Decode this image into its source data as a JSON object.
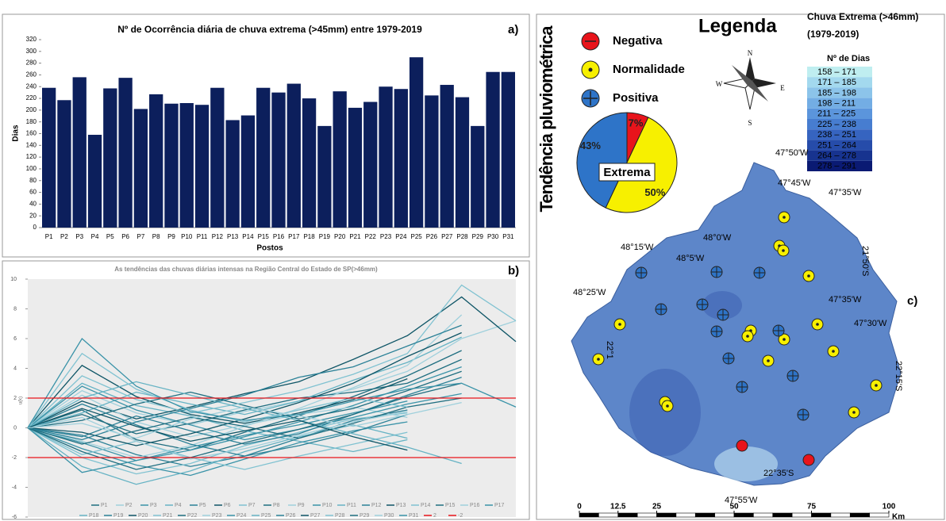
{
  "chart_data": [
    {
      "type": "bar",
      "panel_label": "a)",
      "title": "Nº de Ocorrência diária de chuva extrema (>45mm) entre 1979-2019",
      "xlabel": "Postos",
      "ylabel": "Dias",
      "color": "#0c1f5c",
      "categories": [
        "P1",
        "P2",
        "P3",
        "P4",
        "P5",
        "P6",
        "P7",
        "P8",
        "P9",
        "P10",
        "P11",
        "P12",
        "P13",
        "P14",
        "P15",
        "P16",
        "P17",
        "P18",
        "P19",
        "P20",
        "P21",
        "P22",
        "P23",
        "P24",
        "P25",
        "P26",
        "P27",
        "P28",
        "P29",
        "P30",
        "P31"
      ],
      "values": [
        238,
        217,
        256,
        158,
        237,
        255,
        202,
        227,
        211,
        212,
        209,
        238,
        183,
        191,
        238,
        230,
        245,
        220,
        173,
        232,
        204,
        214,
        240,
        236,
        290,
        225,
        243,
        222,
        173,
        265,
        265
      ],
      "ylim": [
        0,
        320
      ],
      "yticks": [
        0,
        20,
        40,
        60,
        80,
        100,
        120,
        140,
        160,
        180,
        200,
        220,
        240,
        260,
        280,
        300,
        320
      ]
    },
    {
      "type": "line",
      "panel_label": "b)",
      "title": "As tendências das chuvas diárias intensas na Região Central do Estado de SP(>46mm)",
      "ylabel": "u(k)",
      "categories": [
        null,
        null,
        null,
        null,
        null,
        null,
        null,
        null,
        null,
        null
      ],
      "ylim": [
        -6,
        10
      ],
      "yticks": [
        -6,
        -4,
        -2,
        0,
        2,
        4,
        6,
        8,
        10
      ],
      "series": [
        {
          "name": "P1",
          "color": "#1f6e80",
          "values": [
            0,
            1.2,
            -0.8,
            -1.5,
            -0.3,
            0.8,
            2.1,
            3.5,
            5.2,
            null
          ]
        },
        {
          "name": "P2",
          "color": "#9fd0dc",
          "values": [
            0,
            2.5,
            1.0,
            0.2,
            1.1,
            1.8,
            2.6,
            3.8,
            6.0,
            7.2
          ]
        },
        {
          "name": "P3",
          "color": "#3a93a8",
          "values": [
            0,
            -1.0,
            -2.2,
            -1.5,
            -0.6,
            0.4,
            1.5,
            2.8,
            4.1,
            null
          ]
        },
        {
          "name": "P4",
          "color": "#66b3c4",
          "values": [
            0,
            3.0,
            1.5,
            0.8,
            -0.2,
            -0.9,
            -1.6,
            -0.8,
            null,
            null
          ]
        },
        {
          "name": "P5",
          "color": "#2b8197",
          "values": [
            0,
            -0.5,
            -1.8,
            -2.6,
            -1.9,
            -0.7,
            0.5,
            1.2,
            null,
            null
          ]
        },
        {
          "name": "P6",
          "color": "#0e5566",
          "values": [
            0,
            1.8,
            0.6,
            1.4,
            2.3,
            3.1,
            4.6,
            6.2,
            8.8,
            5.8
          ]
        },
        {
          "name": "P7",
          "color": "#80c2d1",
          "values": [
            0,
            -2.0,
            -3.1,
            -2.4,
            -1.2,
            -0.3,
            0.6,
            1.0,
            null,
            null
          ]
        },
        {
          "name": "P8",
          "color": "#1f6e80",
          "values": [
            0,
            0.9,
            -0.4,
            0.3,
            1.2,
            2.0,
            2.4,
            3.0,
            4.6,
            null
          ]
        },
        {
          "name": "P9",
          "color": "#9fd0dc",
          "values": [
            0,
            2.2,
            0.4,
            -0.6,
            0.2,
            0.9,
            1.4,
            0.7,
            null,
            null
          ]
        },
        {
          "name": "P10",
          "color": "#3a93a8",
          "values": [
            0,
            -1.4,
            -2.5,
            -3.2,
            -2.1,
            -1.0,
            -0.2,
            0.4,
            null,
            null
          ]
        },
        {
          "name": "P11",
          "color": "#66b3c4",
          "values": [
            0,
            1.0,
            2.4,
            1.6,
            0.9,
            1.8,
            3.2,
            4.4,
            6.1,
            null
          ]
        },
        {
          "name": "P12",
          "color": "#2b8197",
          "values": [
            0,
            -0.6,
            0.8,
            -0.2,
            -1.1,
            -0.4,
            0.9,
            2.2,
            3.4,
            null
          ]
        },
        {
          "name": "P13",
          "color": "#0e5566",
          "values": [
            0,
            4.2,
            2.1,
            0.9,
            0.3,
            1.0,
            1.9,
            3.3,
            null,
            null
          ]
        },
        {
          "name": "P14",
          "color": "#80c2d1",
          "values": [
            0,
            -1.8,
            -0.9,
            -2.0,
            -2.8,
            -1.9,
            -1.1,
            -0.3,
            null,
            null
          ]
        },
        {
          "name": "P15",
          "color": "#1f6e80",
          "values": [
            0,
            0.5,
            1.6,
            2.4,
            1.5,
            0.6,
            1.3,
            2.5,
            3.8,
            null
          ]
        },
        {
          "name": "P16",
          "color": "#9fd0dc",
          "values": [
            0,
            -0.9,
            -2.0,
            -1.2,
            0.1,
            1.3,
            2.7,
            4.2,
            7.6,
            null
          ]
        },
        {
          "name": "P17",
          "color": "#3a93a8",
          "values": [
            0,
            2.8,
            1.2,
            0.2,
            -0.8,
            -0.1,
            0.7,
            1.6,
            2.3,
            null
          ]
        },
        {
          "name": "P18",
          "color": "#66b3c4",
          "values": [
            0,
            -2.6,
            -3.8,
            -2.9,
            -1.6,
            -0.6,
            0.2,
            -0.7,
            null,
            null
          ]
        },
        {
          "name": "P19",
          "color": "#2b8197",
          "values": [
            0,
            1.6,
            0.2,
            -1.1,
            -1.9,
            -1.2,
            -0.3,
            0.9,
            null,
            null
          ]
        },
        {
          "name": "P20",
          "color": "#0e5566",
          "values": [
            0,
            -0.3,
            -1.2,
            -0.4,
            0.6,
            1.7,
            3.0,
            4.8,
            6.4,
            null
          ]
        },
        {
          "name": "P21",
          "color": "#80c2d1",
          "values": [
            0,
            3.5,
            1.9,
            1.0,
            1.7,
            2.5,
            3.6,
            5.0,
            9.6,
            7.2
          ]
        },
        {
          "name": "P22",
          "color": "#1f6e80",
          "values": [
            0,
            -1.1,
            -0.2,
            0.7,
            0.1,
            -0.7,
            0.3,
            1.4,
            2.0,
            null
          ]
        },
        {
          "name": "P23",
          "color": "#9fd0dc",
          "values": [
            0,
            0.7,
            -0.9,
            -2.1,
            -1.4,
            -0.5,
            0.4,
            1.1,
            null,
            null
          ]
        },
        {
          "name": "P24",
          "color": "#3a93a8",
          "values": [
            0,
            -3.0,
            -2.2,
            -1.3,
            -0.5,
            0.2,
            1.0,
            1.8,
            null,
            null
          ]
        },
        {
          "name": "P25",
          "color": "#66b3c4",
          "values": [
            0,
            2.0,
            3.1,
            2.2,
            1.3,
            0.5,
            -0.4,
            -1.3,
            -2.4,
            null
          ]
        },
        {
          "name": "P26",
          "color": "#2b8197",
          "values": [
            0,
            -0.8,
            0.4,
            1.3,
            2.2,
            3.4,
            4.1,
            5.5,
            6.9,
            null
          ]
        },
        {
          "name": "P27",
          "color": "#0e5566",
          "values": [
            0,
            1.3,
            0.1,
            -0.9,
            -0.2,
            0.5,
            -0.6,
            -1.5,
            null,
            null
          ]
        },
        {
          "name": "P28",
          "color": "#80c2d1",
          "values": [
            0,
            5.0,
            2.6,
            1.2,
            0.4,
            1.2,
            2.0,
            1.4,
            null,
            null
          ]
        },
        {
          "name": "P29",
          "color": "#1f6e80",
          "values": [
            0,
            -1.6,
            -2.8,
            -2.0,
            -1.0,
            -0.1,
            0.9,
            2.1,
            3.0,
            null
          ]
        },
        {
          "name": "P30",
          "color": "#9fd0dc",
          "values": [
            0,
            0.3,
            -0.7,
            0.6,
            1.4,
            0.8,
            0.1,
            0.9,
            1.7,
            null
          ]
        },
        {
          "name": "P31",
          "color": "#3a93a8",
          "values": [
            0,
            6.0,
            2.8,
            1.1,
            0.5,
            0.9,
            1.8,
            2.6,
            3.0,
            1.4
          ]
        },
        {
          "name": "2",
          "color": "#e8141b",
          "values": [
            2,
            2,
            2,
            2,
            2,
            2,
            2,
            2,
            2,
            2
          ]
        },
        {
          "name": "-2",
          "color": "#e8141b",
          "values": [
            -2,
            -2,
            -2,
            -2,
            -2,
            -2,
            -2,
            -2,
            -2,
            -2
          ]
        }
      ]
    },
    {
      "type": "pie",
      "title": "Tendência pluviométrica",
      "legend_title": "Legenda",
      "center_label": "Extrema",
      "categories": [
        "Negativa",
        "Normalidade",
        "Positiva"
      ],
      "values": [
        7,
        50,
        43
      ],
      "value_labels": [
        "7%",
        "50%",
        "43%"
      ],
      "colors": [
        "#e8141b",
        "#f7f000",
        "#2e74c8"
      ]
    }
  ],
  "map": {
    "panel_label": "c)",
    "title": "Chuva Extrema (>46mm)",
    "period": "(1979-2019)",
    "legend_title": "Nº de Dias",
    "classes": [
      "158 – 171",
      "171 – 185",
      "185 – 198",
      "198 – 211",
      "211 – 225",
      "225 – 238",
      "238 – 251",
      "251 – 264",
      "264 – 278",
      "278 – 291"
    ],
    "class_colors": [
      "#bfeef0",
      "#a3d9ee",
      "#8cc4ea",
      "#73ade4",
      "#5b95dc",
      "#477dd0",
      "#3664c0",
      "#264caa",
      "#17338f",
      "#0a1a73"
    ],
    "labels": [
      "47°50'W",
      "47°45'W",
      "47°35'W",
      "21°50'S",
      "48°15'W",
      "48°0'W",
      "48°5'W",
      "48°25'W",
      "47°35'W",
      "47°30'W",
      "22°1",
      "22°15'S",
      "22°35'S",
      "47°55'W"
    ],
    "compass": [
      "N",
      "S",
      "W",
      "E"
    ],
    "scale_ticks": [
      0,
      12.5,
      25,
      50,
      75,
      100
    ],
    "scale_unit": "Km"
  }
}
